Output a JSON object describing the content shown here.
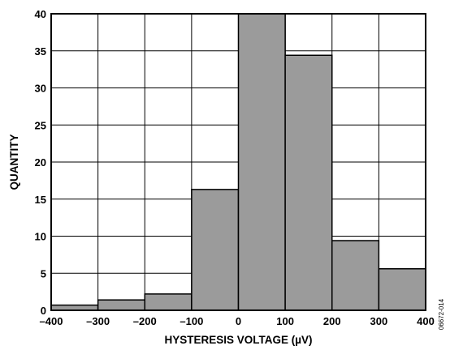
{
  "chart_data": {
    "type": "bar",
    "xlabel": "HYSTERESIS VOLTAGE (µV)",
    "ylabel": "QUANTITY",
    "xlim": [
      -400,
      400
    ],
    "ylim": [
      0,
      40
    ],
    "x_ticks": [
      -400,
      -300,
      -200,
      -100,
      0,
      100,
      200,
      300,
      400
    ],
    "x_tick_labels": [
      "–400",
      "–300",
      "–200",
      "–100",
      "0",
      "100",
      "200",
      "300",
      "400"
    ],
    "y_ticks": [
      0,
      5,
      10,
      15,
      20,
      25,
      30,
      35,
      40
    ],
    "y_tick_labels": [
      "0",
      "5",
      "10",
      "15",
      "20",
      "25",
      "30",
      "35",
      "40"
    ],
    "grid": true,
    "bins": [
      {
        "start": -400,
        "end": -300,
        "value": 0.7
      },
      {
        "start": -300,
        "end": -200,
        "value": 1.4
      },
      {
        "start": -200,
        "end": -100,
        "value": 2.2
      },
      {
        "start": -100,
        "end": 0,
        "value": 16.3
      },
      {
        "start": 0,
        "end": 100,
        "value": 40
      },
      {
        "start": 100,
        "end": 200,
        "value": 34.4
      },
      {
        "start": 200,
        "end": 300,
        "value": 9.4
      },
      {
        "start": 300,
        "end": 400,
        "value": 5.6
      }
    ],
    "bar_color": "#9b9b9b",
    "figure_id": "06672-014"
  }
}
